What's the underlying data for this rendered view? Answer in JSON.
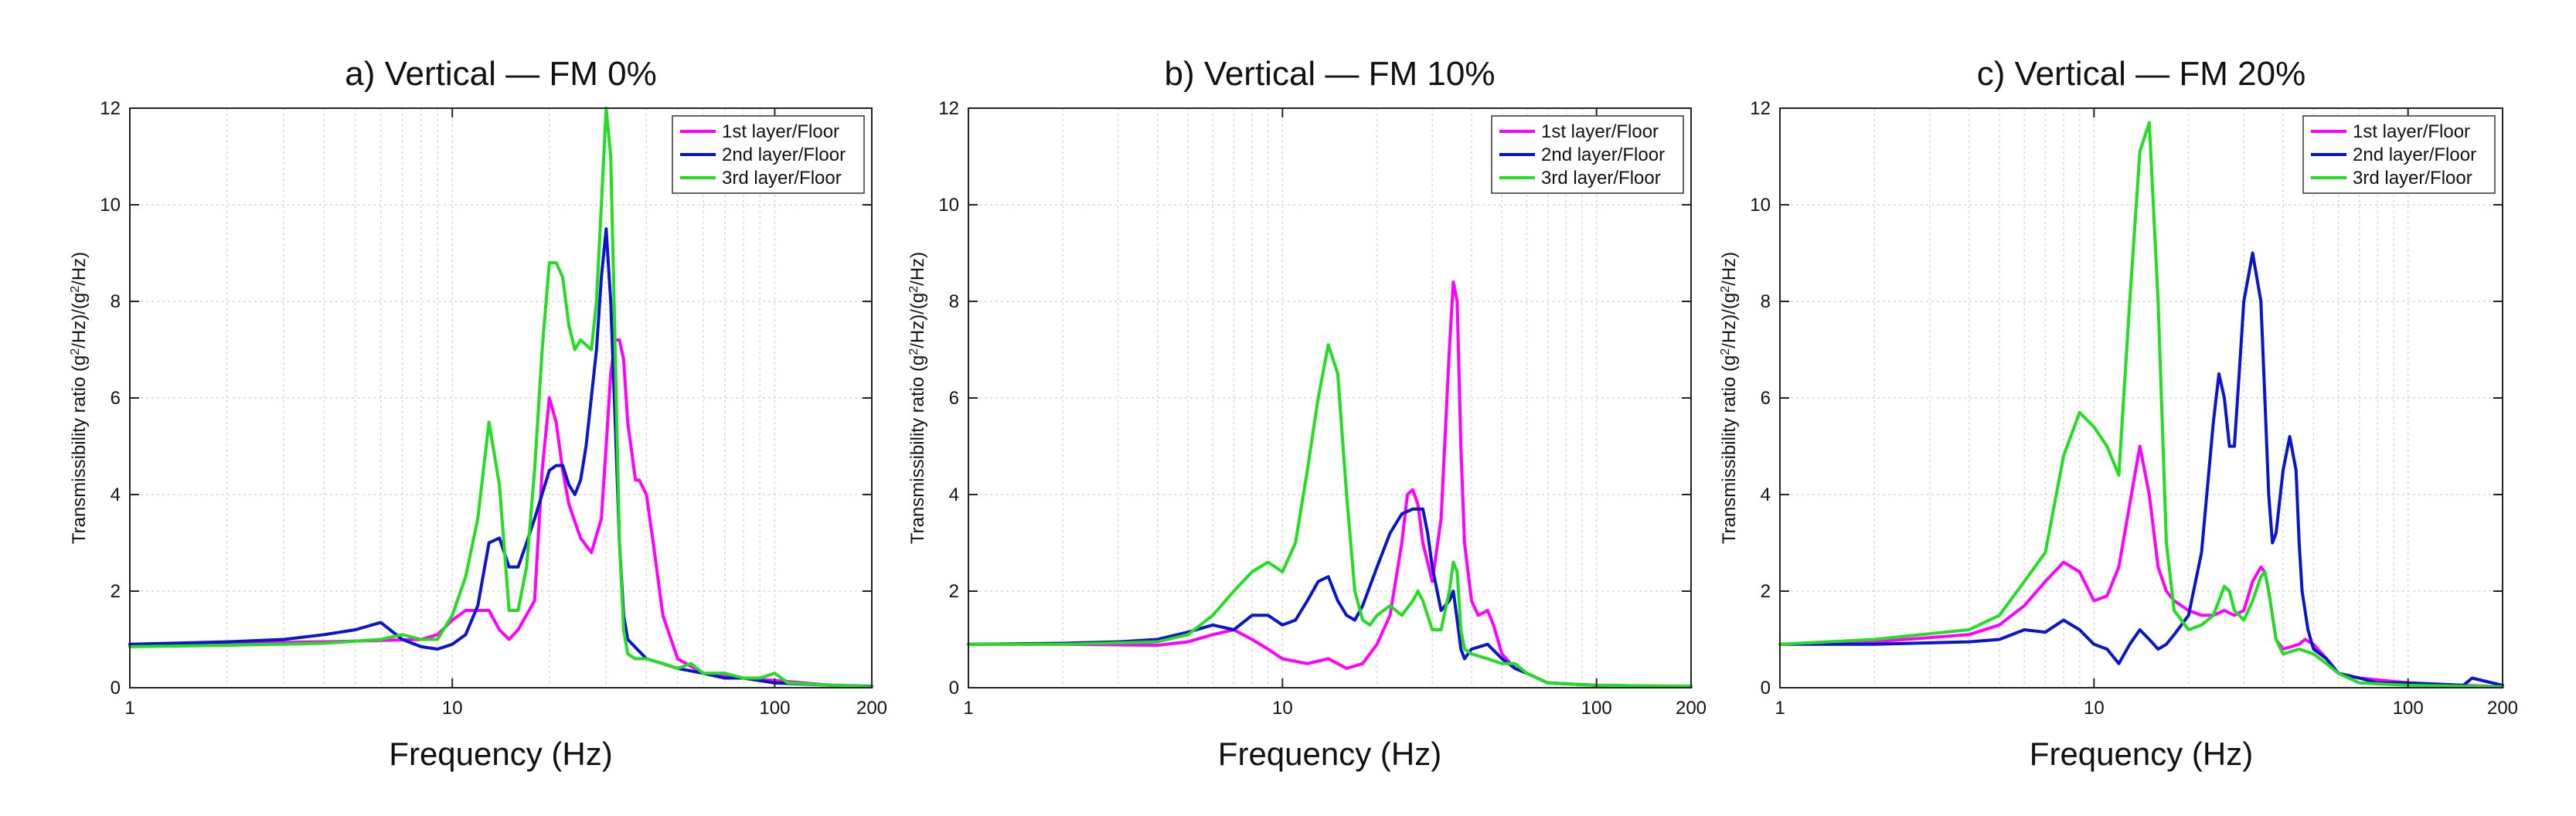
{
  "chart_data": [
    {
      "type": "line",
      "title": "a) Vertical — FM 0%",
      "xlabel": "Frequency (Hz)",
      "ylabel_main": "Transmissibility ratio (g",
      "ylabel_mid": "/Hz)/(g",
      "ylabel_end": "/Hz)",
      "ylabel_sup": "2",
      "xscale": "log",
      "xlim": [
        1,
        200
      ],
      "ylim": [
        0,
        12
      ],
      "grid": true,
      "legend_position": "top-right",
      "xticks": [
        1,
        10,
        100,
        200
      ],
      "xtick_labels": [
        "1",
        "10",
        "100",
        "200"
      ],
      "yticks": [
        0,
        2,
        4,
        6,
        8,
        10,
        12
      ],
      "ytick_labels": [
        "0",
        "2",
        "4",
        "6",
        "8",
        "10",
        "12"
      ],
      "series": [
        {
          "name": "1st layer/Floor",
          "color": "#ff00ff",
          "x": [
            1,
            2,
            4,
            6,
            8,
            9,
            10,
            11,
            12,
            13,
            14,
            15,
            16,
            18,
            19,
            20,
            21,
            22,
            23,
            25,
            27,
            29,
            30,
            31,
            32,
            33,
            34,
            35,
            37,
            38,
            40,
            42,
            45,
            50,
            60,
            80,
            100,
            150,
            200
          ],
          "y": [
            0.9,
            0.92,
            0.95,
            0.98,
            1.0,
            1.1,
            1.4,
            1.6,
            1.6,
            1.6,
            1.2,
            1.0,
            1.2,
            1.8,
            4.5,
            6.0,
            5.5,
            4.5,
            3.8,
            3.1,
            2.8,
            3.5,
            5.0,
            6.5,
            7.2,
            7.2,
            6.8,
            5.5,
            4.3,
            4.3,
            4.0,
            3.0,
            1.5,
            0.6,
            0.3,
            0.2,
            0.15,
            0.05,
            0.02
          ]
        },
        {
          "name": "2nd layer/Floor",
          "color": "#0a14c8",
          "x": [
            1,
            2,
            3,
            4,
            5,
            6,
            7,
            8,
            9,
            10,
            11,
            12,
            13,
            14,
            15,
            16,
            17,
            18,
            20,
            21,
            22,
            23,
            24,
            25,
            26,
            28,
            29,
            30,
            31,
            32,
            33,
            34,
            35,
            40,
            45,
            50,
            60,
            70,
            80,
            100,
            150,
            200
          ],
          "y": [
            0.9,
            0.95,
            1.0,
            1.1,
            1.2,
            1.35,
            1.0,
            0.85,
            0.8,
            0.9,
            1.1,
            1.7,
            3.0,
            3.1,
            2.5,
            2.5,
            3.0,
            3.5,
            4.5,
            4.6,
            4.6,
            4.2,
            4.0,
            4.3,
            5.0,
            7.0,
            8.5,
            9.5,
            8.0,
            5.5,
            3.0,
            1.5,
            1.0,
            0.6,
            0.5,
            0.4,
            0.3,
            0.2,
            0.2,
            0.1,
            0.05,
            0.03
          ]
        },
        {
          "name": "3rd layer/Floor",
          "color": "#22dd22",
          "x": [
            1,
            2,
            4,
            6,
            7,
            8,
            9,
            10,
            11,
            12,
            13,
            14,
            15,
            16,
            17,
            18,
            19,
            20,
            21,
            22,
            23,
            24,
            25,
            27,
            28,
            29,
            30,
            31,
            32,
            33,
            34,
            35,
            37,
            40,
            45,
            50,
            55,
            60,
            70,
            80,
            90,
            100,
            110,
            150,
            200
          ],
          "y": [
            0.85,
            0.88,
            0.92,
            1.0,
            1.1,
            1.0,
            1.0,
            1.5,
            2.3,
            3.5,
            5.5,
            4.2,
            1.6,
            1.6,
            2.5,
            4.5,
            7.0,
            8.8,
            8.8,
            8.5,
            7.5,
            7.0,
            7.2,
            7.0,
            8.0,
            10.0,
            12.0,
            11.0,
            7.0,
            3.0,
            1.2,
            0.7,
            0.6,
            0.6,
            0.5,
            0.4,
            0.5,
            0.3,
            0.3,
            0.2,
            0.2,
            0.3,
            0.1,
            0.05,
            0.02
          ]
        }
      ]
    },
    {
      "type": "line",
      "title": "b) Vertical — FM 10%",
      "xlabel": "Frequency (Hz)",
      "ylabel_main": "Transmissibility ratio (g",
      "ylabel_mid": "/Hz)/(g",
      "ylabel_end": "/Hz)",
      "ylabel_sup": "2",
      "xscale": "log",
      "xlim": [
        1,
        200
      ],
      "ylim": [
        0,
        12
      ],
      "grid": true,
      "legend_position": "top-right",
      "xticks": [
        1,
        10,
        100,
        200
      ],
      "xtick_labels": [
        "1",
        "10",
        "100",
        "200"
      ],
      "yticks": [
        0,
        2,
        4,
        6,
        8,
        10,
        12
      ],
      "ytick_labels": [
        "0",
        "2",
        "4",
        "6",
        "8",
        "10",
        "12"
      ],
      "series": [
        {
          "name": "1st layer/Floor",
          "color": "#ff00ff",
          "x": [
            1,
            2,
            4,
            5,
            6,
            7,
            8,
            9,
            10,
            12,
            14,
            15,
            16,
            18,
            20,
            22,
            24,
            25,
            26,
            27,
            28,
            30,
            32,
            34,
            35,
            36,
            37,
            38,
            40,
            42,
            45,
            47,
            50,
            55,
            60,
            70,
            100,
            200
          ],
          "y": [
            0.9,
            0.9,
            0.88,
            0.95,
            1.1,
            1.2,
            1.0,
            0.8,
            0.6,
            0.5,
            0.6,
            0.5,
            0.4,
            0.5,
            0.9,
            1.5,
            3.0,
            4.0,
            4.1,
            3.8,
            3.0,
            2.2,
            3.5,
            7.0,
            8.4,
            8.0,
            5.0,
            3.0,
            1.8,
            1.5,
            1.6,
            1.3,
            0.7,
            0.4,
            0.3,
            0.1,
            0.05,
            0.02
          ]
        },
        {
          "name": "2nd layer/Floor",
          "color": "#0a14c8",
          "x": [
            1,
            2,
            3,
            4,
            5,
            6,
            7,
            8,
            9,
            10,
            11,
            12,
            13,
            14,
            15,
            16,
            17,
            18,
            20,
            22,
            24,
            26,
            27,
            28,
            29,
            30,
            32,
            34,
            35,
            36,
            37,
            38,
            40,
            45,
            50,
            55,
            60,
            70,
            100,
            200
          ],
          "y": [
            0.9,
            0.92,
            0.95,
            1.0,
            1.15,
            1.3,
            1.2,
            1.5,
            1.5,
            1.3,
            1.4,
            1.8,
            2.2,
            2.3,
            1.8,
            1.5,
            1.4,
            1.7,
            2.5,
            3.2,
            3.6,
            3.7,
            3.7,
            3.7,
            3.2,
            2.5,
            1.6,
            1.8,
            2.0,
            1.4,
            0.8,
            0.6,
            0.8,
            0.9,
            0.6,
            0.4,
            0.3,
            0.1,
            0.05,
            0.02
          ]
        },
        {
          "name": "3rd layer/Floor",
          "color": "#22dd22",
          "x": [
            1,
            2,
            4,
            5,
            6,
            7,
            8,
            9,
            10,
            11,
            12,
            13,
            14,
            15,
            16,
            17,
            18,
            19,
            20,
            22,
            24,
            26,
            27,
            28,
            30,
            32,
            34,
            35,
            36,
            37,
            38,
            40,
            45,
            50,
            55,
            60,
            70,
            100,
            200
          ],
          "y": [
            0.9,
            0.9,
            0.95,
            1.1,
            1.5,
            2.0,
            2.4,
            2.6,
            2.4,
            3.0,
            4.5,
            6.0,
            7.1,
            6.5,
            4.0,
            2.0,
            1.4,
            1.3,
            1.5,
            1.7,
            1.5,
            1.8,
            2.0,
            1.8,
            1.2,
            1.2,
            2.0,
            2.6,
            2.4,
            1.2,
            0.8,
            0.7,
            0.6,
            0.5,
            0.5,
            0.3,
            0.1,
            0.05,
            0.03
          ]
        }
      ]
    },
    {
      "type": "line",
      "title": "c) Vertical — FM 20%",
      "xlabel": "Frequency (Hz)",
      "ylabel_main": "Transmissibility ratio (g",
      "ylabel_mid": "/Hz)/(g",
      "ylabel_end": "/Hz)",
      "ylabel_sup": "2",
      "xscale": "log",
      "xlim": [
        1,
        200
      ],
      "ylim": [
        0,
        12
      ],
      "grid": true,
      "legend_position": "top-right",
      "xticks": [
        1,
        10,
        100,
        200
      ],
      "xtick_labels": [
        "1",
        "10",
        "100",
        "200"
      ],
      "yticks": [
        0,
        2,
        4,
        6,
        8,
        10,
        12
      ],
      "ytick_labels": [
        "0",
        "2",
        "4",
        "6",
        "8",
        "10",
        "12"
      ],
      "series": [
        {
          "name": "1st layer/Floor",
          "color": "#ff00ff",
          "x": [
            1,
            2,
            4,
            5,
            6,
            7,
            8,
            9,
            10,
            11,
            12,
            13,
            14,
            15,
            16,
            17,
            18,
            20,
            22,
            24,
            26,
            28,
            30,
            32,
            34,
            35,
            36,
            38,
            40,
            45,
            47,
            50,
            55,
            60,
            70,
            100,
            150,
            200
          ],
          "y": [
            0.9,
            0.95,
            1.1,
            1.3,
            1.7,
            2.2,
            2.6,
            2.4,
            1.8,
            1.9,
            2.5,
            3.8,
            5.0,
            4.0,
            2.5,
            2.0,
            1.8,
            1.6,
            1.5,
            1.5,
            1.6,
            1.5,
            1.6,
            2.2,
            2.5,
            2.4,
            2.0,
            1.0,
            0.8,
            0.9,
            1.0,
            0.9,
            0.6,
            0.3,
            0.2,
            0.1,
            0.05,
            0.02
          ]
        },
        {
          "name": "2nd layer/Floor",
          "color": "#0a14c8",
          "x": [
            1,
            2,
            4,
            5,
            6,
            7,
            8,
            9,
            10,
            11,
            12,
            13,
            14,
            15,
            16,
            17,
            18,
            20,
            22,
            24,
            25,
            26,
            27,
            28,
            29,
            30,
            32,
            34,
            35,
            36,
            37,
            38,
            40,
            42,
            44,
            45,
            46,
            48,
            50,
            55,
            60,
            70,
            80,
            100,
            150,
            160,
            200
          ],
          "y": [
            0.9,
            0.9,
            0.95,
            1.0,
            1.2,
            1.15,
            1.4,
            1.2,
            0.9,
            0.8,
            0.5,
            0.9,
            1.2,
            1.0,
            0.8,
            0.9,
            1.1,
            1.5,
            2.8,
            5.5,
            6.5,
            6.0,
            5.0,
            5.0,
            6.5,
            8.0,
            9.0,
            8.0,
            6.0,
            4.0,
            3.0,
            3.2,
            4.5,
            5.2,
            4.5,
            3.0,
            2.0,
            1.2,
            0.8,
            0.6,
            0.3,
            0.2,
            0.1,
            0.1,
            0.05,
            0.2,
            0.05
          ]
        },
        {
          "name": "3rd layer/Floor",
          "color": "#22dd22",
          "x": [
            1,
            2,
            4,
            5,
            6,
            7,
            8,
            9,
            10,
            11,
            12,
            13,
            14,
            15,
            16,
            17,
            18,
            20,
            22,
            24,
            26,
            27,
            28,
            30,
            32,
            34,
            35,
            36,
            38,
            40,
            45,
            50,
            55,
            60,
            70,
            100,
            200
          ],
          "y": [
            0.9,
            1.0,
            1.2,
            1.5,
            2.2,
            2.8,
            4.8,
            5.7,
            5.4,
            5.0,
            4.4,
            8.0,
            11.1,
            11.7,
            8.0,
            3.0,
            1.6,
            1.2,
            1.3,
            1.5,
            2.1,
            2.0,
            1.6,
            1.4,
            1.8,
            2.3,
            2.4,
            2.0,
            1.0,
            0.7,
            0.8,
            0.7,
            0.5,
            0.3,
            0.1,
            0.05,
            0.02
          ]
        }
      ]
    }
  ]
}
